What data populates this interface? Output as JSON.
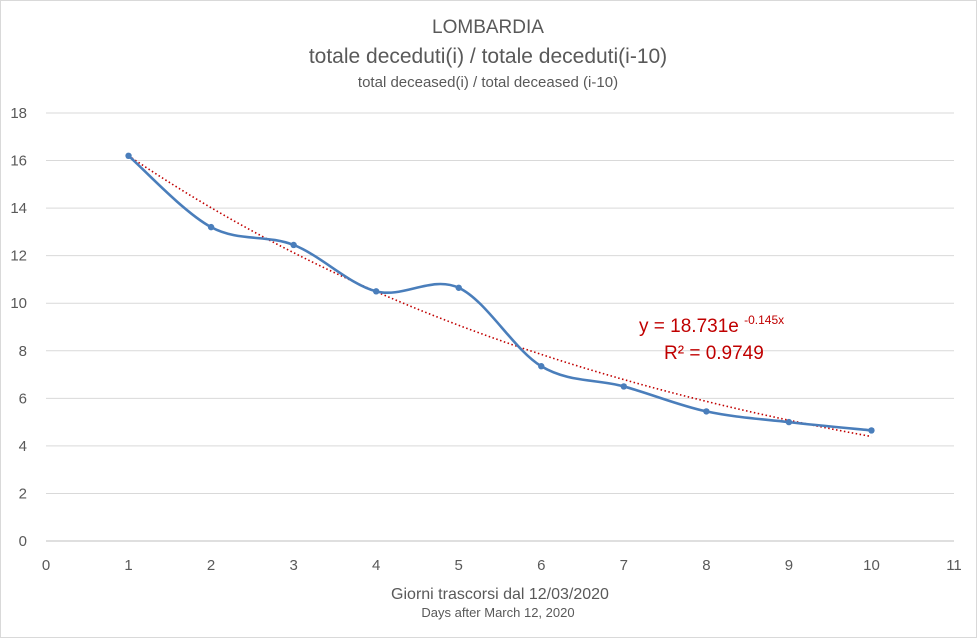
{
  "chart_data": {
    "type": "line",
    "title": "LOMBARDIA",
    "subtitle": "totale deceduti(i) / totale deceduti(i-10)",
    "subtitle_en": "total deceased(i) / total deceased (i-10)",
    "xlabel": "Giorni trascorsi dal 12/03/2020",
    "xlabel_en": "Days after March 12, 2020",
    "ylabel": "",
    "xlim": [
      0,
      11
    ],
    "ylim": [
      0,
      18
    ],
    "xticks": [
      0,
      1,
      2,
      3,
      4,
      5,
      6,
      7,
      8,
      9,
      10,
      11
    ],
    "yticks": [
      0,
      2,
      4,
      6,
      8,
      10,
      12,
      14,
      16,
      18
    ],
    "grid": true,
    "series": [
      {
        "x": [
          1,
          2,
          3,
          4,
          5,
          6,
          7,
          8,
          9,
          10
        ],
        "y": [
          16.2,
          13.2,
          12.45,
          10.5,
          10.65,
          7.35,
          6.5,
          5.45,
          5.0,
          4.65
        ],
        "color": "#4a7ebb",
        "smooth": true,
        "markers": true
      }
    ],
    "trendline": {
      "type": "exponential",
      "a": 18.731,
      "b": -0.145,
      "color": "#c00000",
      "style": "dotted",
      "equation_main": "y = 18.731e",
      "equation_exp": "-0.145x",
      "r_squared_label": "R² = 0.9749"
    }
  }
}
